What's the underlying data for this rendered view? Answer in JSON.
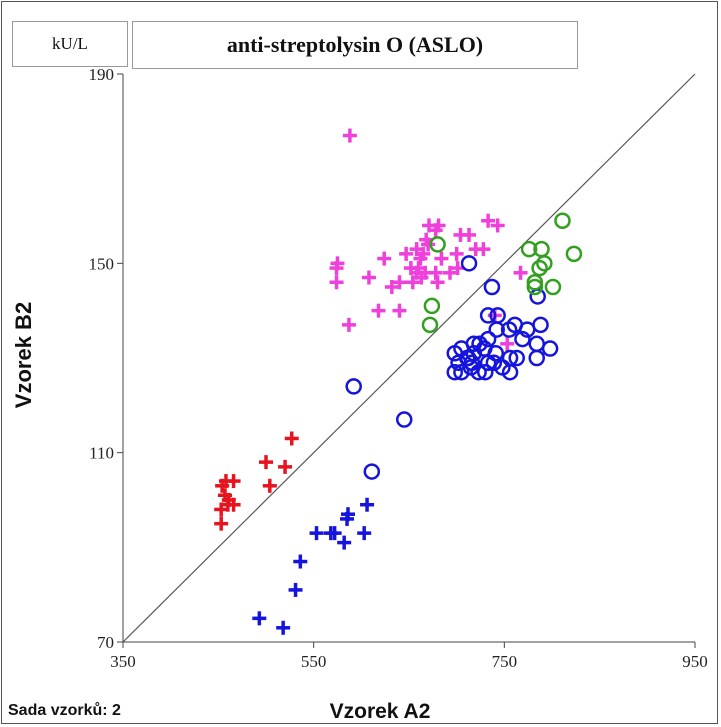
{
  "header": {
    "unit": "kU/L",
    "title": "anti-streptolysin  O (ASLO)"
  },
  "footer": {
    "sample_set": "Sada vzorků: 2"
  },
  "chart_data": {
    "type": "scatter",
    "xlabel": "Vzorek A2",
    "ylabel": "Vzorek B2",
    "xlim": [
      350,
      950
    ],
    "ylim": [
      70,
      190
    ],
    "x_ticks": [
      350,
      550,
      750,
      950
    ],
    "y_ticks": [
      70,
      110,
      150,
      190
    ],
    "grid": false,
    "identity_line": true,
    "series": [
      {
        "marker": "plus",
        "color": "#e6141e",
        "points": [
          [
            458,
            104
          ],
          [
            466,
            104
          ],
          [
            454,
            103
          ],
          [
            457,
            101
          ],
          [
            461,
            100
          ],
          [
            460,
            99
          ],
          [
            466,
            99
          ],
          [
            453,
            98
          ],
          [
            453,
            95
          ],
          [
            500,
            108
          ],
          [
            520,
            107
          ],
          [
            527,
            113
          ],
          [
            504,
            103
          ]
        ]
      },
      {
        "marker": "plus",
        "color": "#1414dc",
        "points": [
          [
            606,
            99
          ],
          [
            586,
            97
          ],
          [
            585,
            96
          ],
          [
            572,
            93
          ],
          [
            603,
            93
          ],
          [
            568,
            93
          ],
          [
            582,
            91
          ],
          [
            553,
            93
          ],
          [
            536,
            87
          ],
          [
            531,
            81
          ],
          [
            493,
            75
          ],
          [
            518,
            73
          ]
        ]
      },
      {
        "marker": "plus",
        "color": "#f040dc",
        "points": [
          [
            588,
            177
          ],
          [
            671,
            158
          ],
          [
            681,
            158
          ],
          [
            733,
            159
          ],
          [
            743,
            158
          ],
          [
            678,
            157
          ],
          [
            704,
            156
          ],
          [
            668,
            155
          ],
          [
            670,
            154
          ],
          [
            713,
            156
          ],
          [
            720,
            153
          ],
          [
            728,
            153
          ],
          [
            658,
            153
          ],
          [
            647,
            152
          ],
          [
            665,
            152
          ],
          [
            700,
            152
          ],
          [
            624,
            151
          ],
          [
            662,
            151
          ],
          [
            684,
            151
          ],
          [
            701,
            149
          ],
          [
            660,
            149
          ],
          [
            667,
            148
          ],
          [
            678,
            148
          ],
          [
            693,
            148
          ],
          [
            575,
            150
          ],
          [
            574,
            149
          ],
          [
            574,
            146
          ],
          [
            608,
            147
          ],
          [
            652,
            149
          ],
          [
            658,
            148
          ],
          [
            663,
            147
          ],
          [
            640,
            146
          ],
          [
            654,
            146
          ],
          [
            680,
            146
          ],
          [
            632,
            145
          ],
          [
            618,
            140
          ],
          [
            640,
            140
          ],
          [
            587,
            137
          ],
          [
            767,
            148
          ],
          [
            740,
            139
          ],
          [
            753,
            133
          ]
        ]
      },
      {
        "marker": "circle",
        "color": "#1414dc",
        "points": [
          [
            713,
            150
          ],
          [
            737,
            145
          ],
          [
            785,
            143
          ],
          [
            733,
            139
          ],
          [
            743,
            139
          ],
          [
            755,
            136
          ],
          [
            761,
            137
          ],
          [
            774,
            136
          ],
          [
            788,
            137
          ],
          [
            742,
            136
          ],
          [
            733,
            134
          ],
          [
            718,
            133
          ],
          [
            724,
            133
          ],
          [
            769,
            134
          ],
          [
            784,
            133
          ],
          [
            798,
            132
          ],
          [
            705,
            132
          ],
          [
            729,
            132
          ],
          [
            741,
            131
          ],
          [
            718,
            131
          ],
          [
            712,
            130
          ],
          [
            698,
            131
          ],
          [
            711,
            130
          ],
          [
            733,
            129
          ],
          [
            784,
            130
          ],
          [
            756,
            130
          ],
          [
            763,
            130
          ],
          [
            702,
            129
          ],
          [
            716,
            129
          ],
          [
            748,
            128
          ],
          [
            705,
            127
          ],
          [
            723,
            127
          ],
          [
            730,
            127
          ],
          [
            698,
            127
          ],
          [
            756,
            127
          ],
          [
            592,
            124
          ],
          [
            645,
            117
          ],
          [
            611,
            106
          ],
          [
            715,
            128
          ],
          [
            739,
            129
          ]
        ]
      },
      {
        "marker": "circle",
        "color": "#32a01e",
        "points": [
          [
            811,
            159
          ],
          [
            776,
            153
          ],
          [
            789,
            153
          ],
          [
            823,
            152
          ],
          [
            792,
            150
          ],
          [
            787,
            149
          ],
          [
            680,
            154
          ],
          [
            782,
            146
          ],
          [
            782,
            145
          ],
          [
            801,
            145
          ],
          [
            674,
            141
          ],
          [
            672,
            137
          ]
        ]
      }
    ]
  }
}
